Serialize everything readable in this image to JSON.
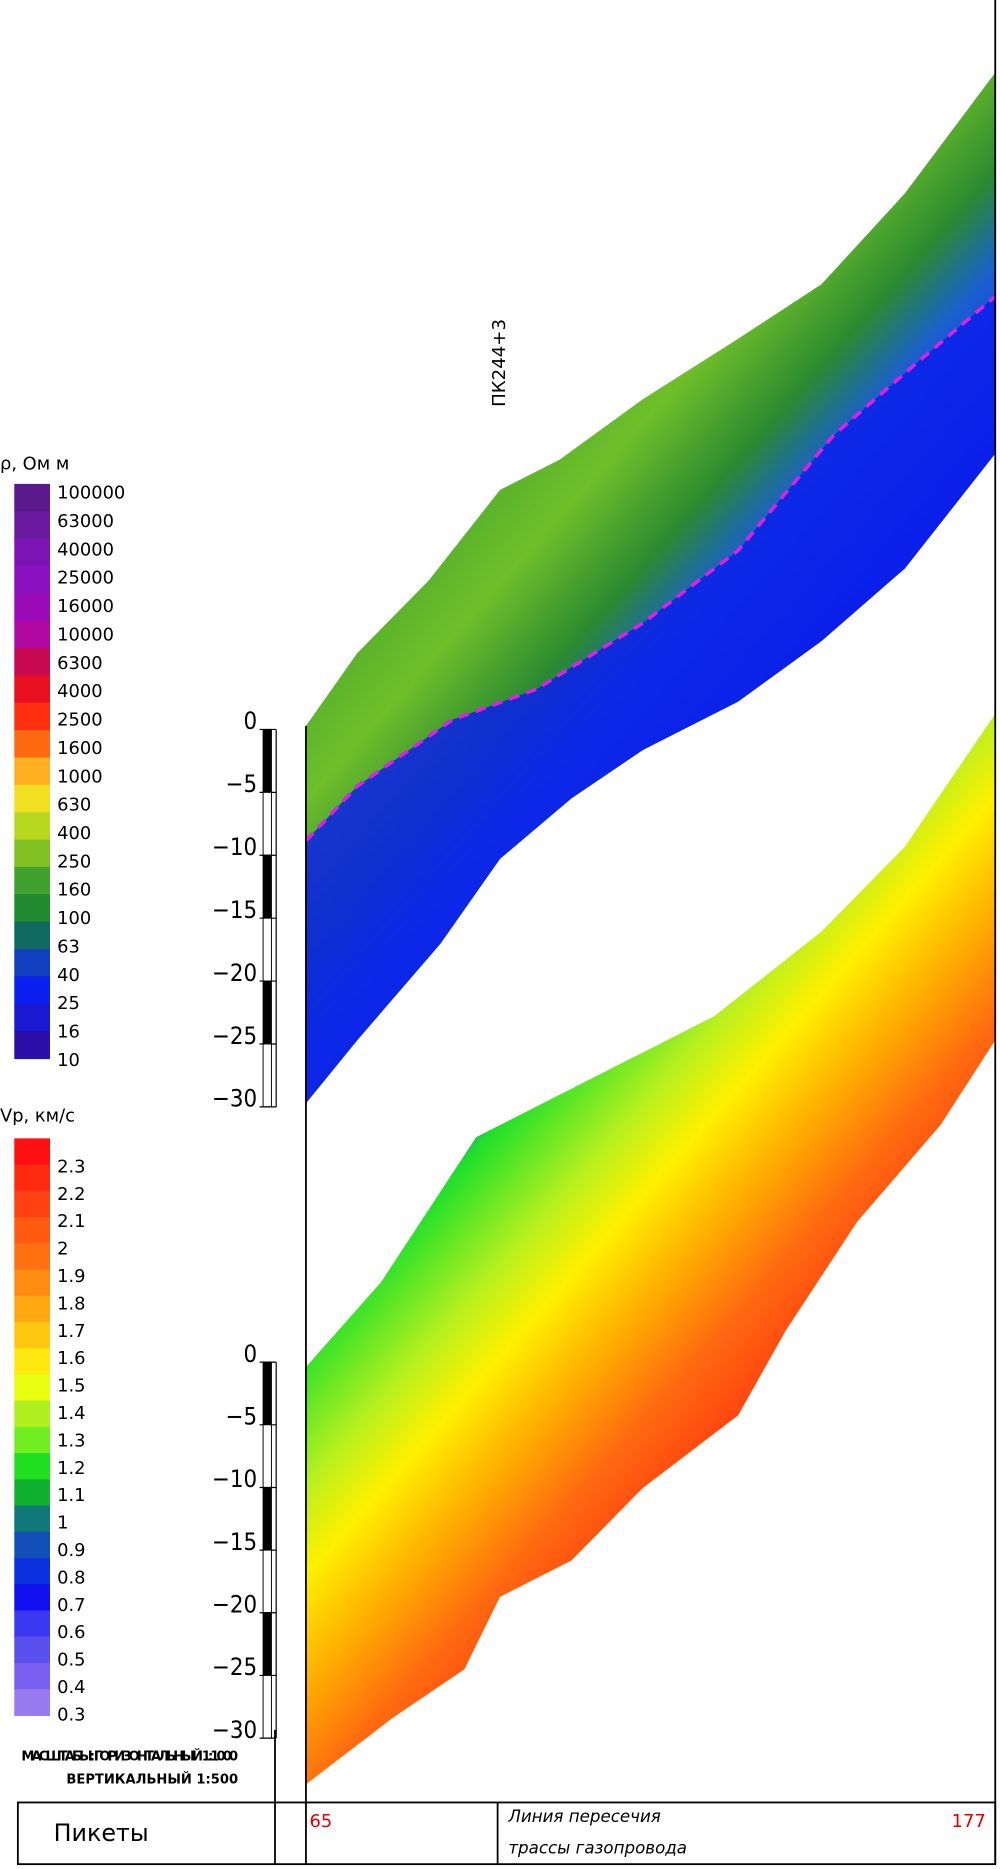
{
  "rho_legend": {
    "title": "ρ, Ом м",
    "labels": [
      "100000",
      "63000",
      "40000",
      "25000",
      "16000",
      "10000",
      "6300",
      "4000",
      "2500",
      "1600",
      "1000",
      "630",
      "400",
      "250",
      "160",
      "100",
      "63",
      "40",
      "25",
      "16",
      "10"
    ]
  },
  "vp_legend": {
    "title": "Vp, км/с",
    "labels": [
      "2.3",
      "2.2",
      "2.1",
      "2",
      "1.9",
      "1.8",
      "1.7",
      "1.6",
      "1.5",
      "1.4",
      "1.3",
      "1.2",
      "1.1",
      "1",
      "0.9",
      "0.8",
      "0.7",
      "0.6",
      "0.5",
      "0.4",
      "0.3"
    ]
  },
  "depth_axis_upper": {
    "ticks": [
      "0",
      "−5",
      "−10",
      "−15",
      "−20",
      "−25",
      "−30"
    ]
  },
  "depth_axis_lower": {
    "ticks": [
      "0",
      "−5",
      "−10",
      "−15",
      "−20",
      "−25",
      "−30"
    ]
  },
  "annotation": "ПК244+3",
  "scale_note": [
    "МАСШТАБЫ: ГОРИЗОНТАЛЬНЫЙ 1:1000",
    "ВЕРТИКАЛЬНЫЙ 1:500"
  ],
  "footer": {
    "label": "Пикеты",
    "start": "65",
    "end": "177",
    "note": [
      "Линия пересечия",
      "трассы газопровода"
    ]
  }
}
